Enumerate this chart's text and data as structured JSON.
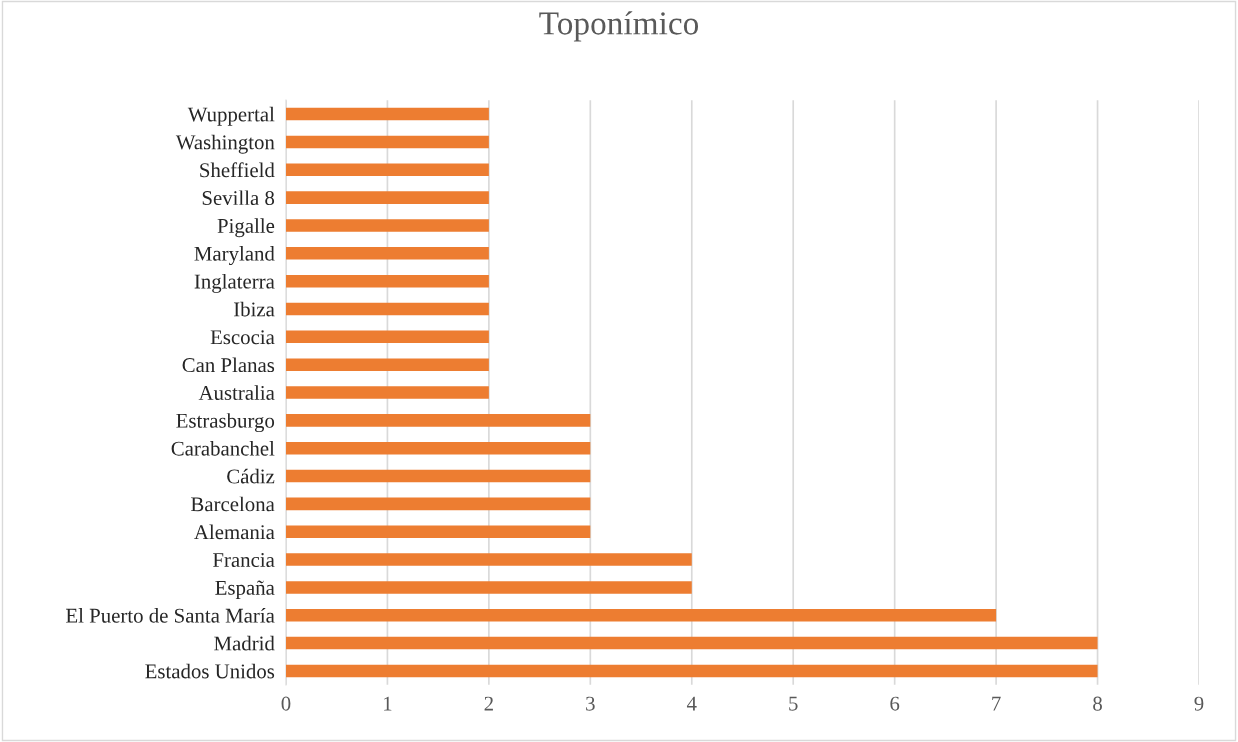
{
  "chart_data": {
    "type": "bar",
    "orientation": "horizontal",
    "title": "Toponímico",
    "categories": [
      "Wuppertal",
      "Washington",
      "Sheffield",
      "Sevilla 8",
      "Pigalle",
      "Maryland",
      "Inglaterra",
      "Ibiza",
      "Escocia",
      "Can Planas",
      "Australia",
      "Estrasburgo",
      "Carabanchel",
      "Cádiz",
      "Barcelona",
      "Alemania",
      "Francia",
      "España",
      "El Puerto de Santa María",
      "Madrid",
      "Estados Unidos"
    ],
    "values": [
      2,
      2,
      2,
      2,
      2,
      2,
      2,
      2,
      2,
      2,
      2,
      3,
      3,
      3,
      3,
      3,
      4,
      4,
      7,
      8,
      8
    ],
    "color": "#ed7d31",
    "xlim": [
      0,
      9
    ],
    "xticks": [
      0,
      1,
      2,
      3,
      4,
      5,
      6,
      7,
      8,
      9
    ],
    "grid": "x",
    "legend": false
  }
}
